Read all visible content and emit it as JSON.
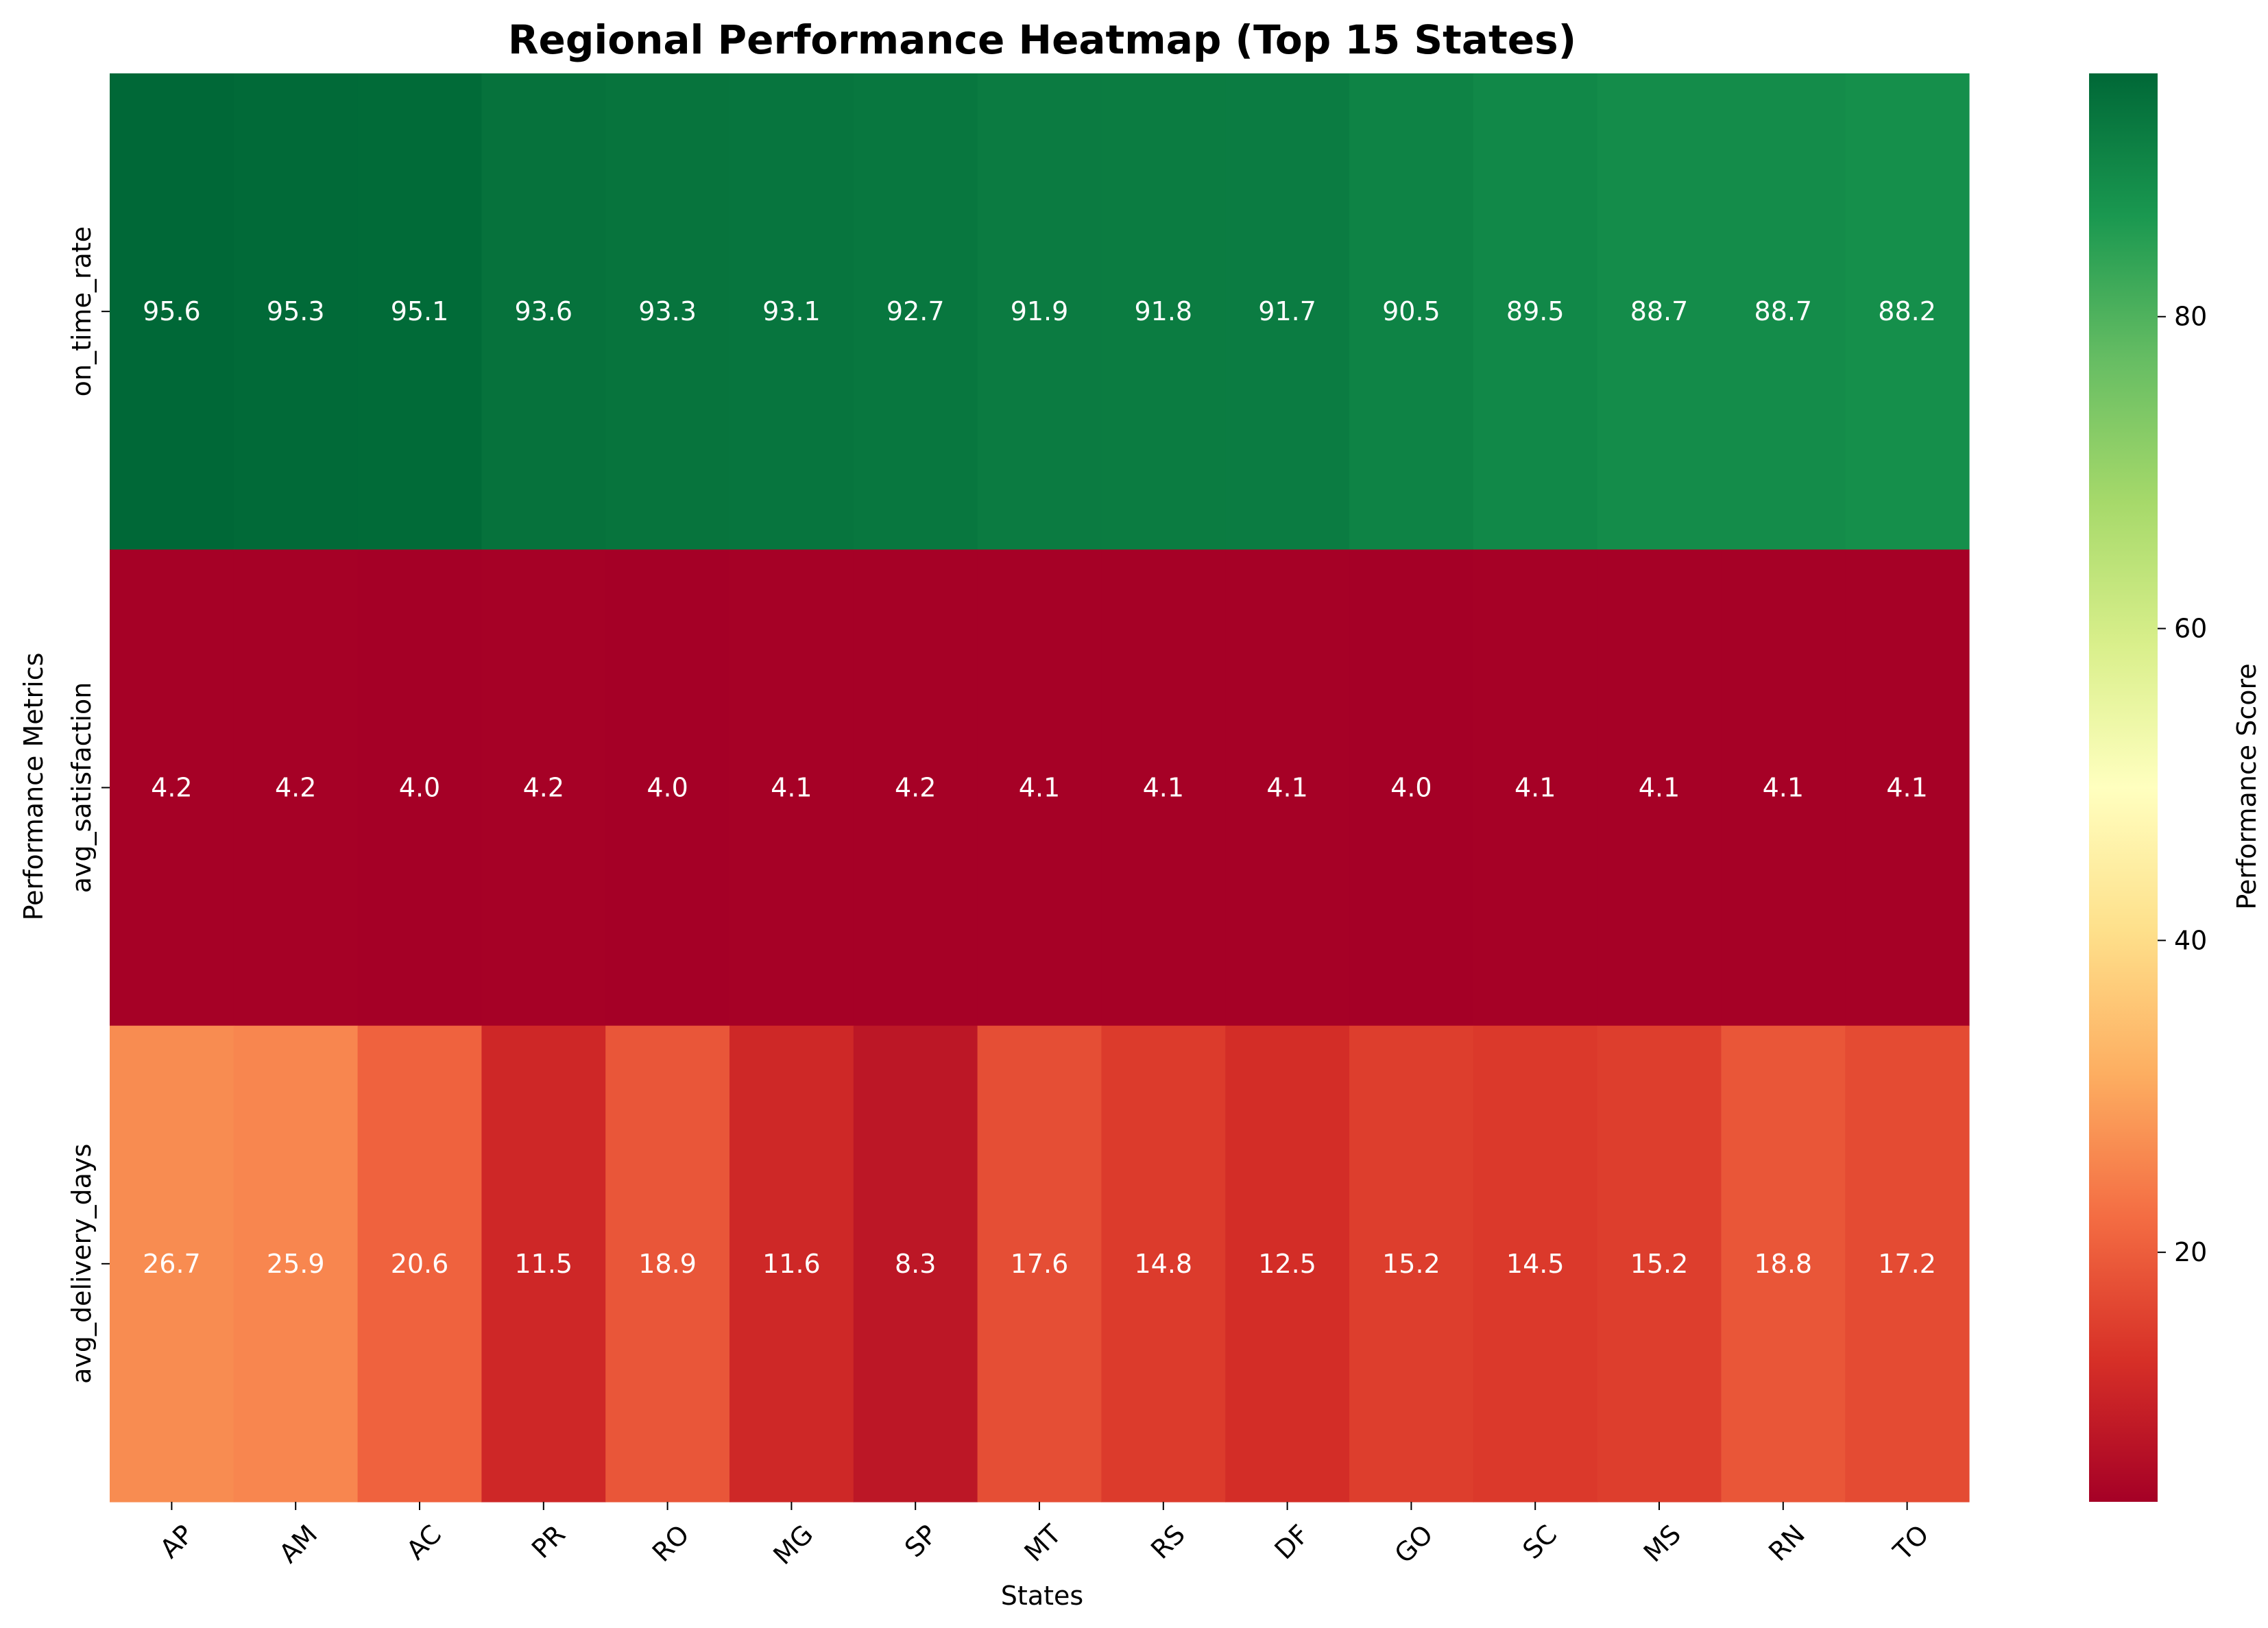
{
  "chart_data": {
    "type": "heatmap",
    "title": "Regional Performance Heatmap (Top 15 States)",
    "xlabel": "States",
    "ylabel": "Performance Metrics",
    "colorbar_label": "Performance Score",
    "colormap": "RdYlGn",
    "vmin": 4.0,
    "vmax": 95.6,
    "colorbar_ticks": [
      20,
      40,
      60,
      80
    ],
    "columns": [
      "AP",
      "AM",
      "AC",
      "PR",
      "RO",
      "MG",
      "SP",
      "MT",
      "RS",
      "DF",
      "GO",
      "SC",
      "MS",
      "RN",
      "TO"
    ],
    "rows": [
      "on_time_rate",
      "avg_satisfaction",
      "avg_delivery_days"
    ],
    "values": [
      [
        95.6,
        95.3,
        95.1,
        93.6,
        93.3,
        93.1,
        92.7,
        91.9,
        91.8,
        91.7,
        90.5,
        89.5,
        88.7,
        88.7,
        88.2
      ],
      [
        4.2,
        4.2,
        4.0,
        4.2,
        4.0,
        4.1,
        4.2,
        4.1,
        4.1,
        4.1,
        4.0,
        4.1,
        4.1,
        4.1,
        4.1
      ],
      [
        26.7,
        25.9,
        20.6,
        11.5,
        18.9,
        11.6,
        8.3,
        17.6,
        14.8,
        12.5,
        15.2,
        14.5,
        15.2,
        18.8,
        17.2
      ]
    ],
    "annotations": true,
    "annotation_format": "0.1f",
    "x_tick_rotation": 45,
    "legend": "none",
    "grid": false
  }
}
